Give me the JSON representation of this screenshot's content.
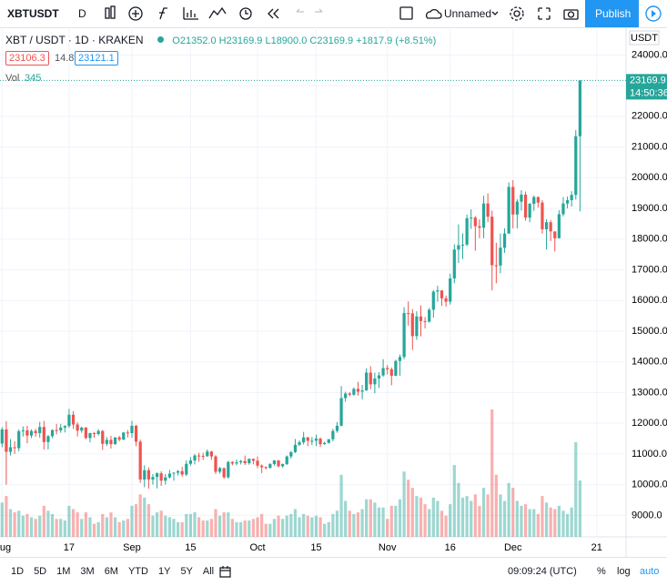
{
  "toolbar": {
    "symbol": "XBTUSDT",
    "interval": "D",
    "layout": "Unnamed",
    "publish": "Publish"
  },
  "legend": {
    "title": "XBT / USDT · 1D · KRAKEN",
    "open": "O21352.0",
    "high": "H23169.9",
    "low": "L18900.0",
    "close": "C23169.9",
    "change": "+1817.9 (+8.51%)",
    "bid": "23106.3",
    "spread": "14.8",
    "ask": "23121.1",
    "volume_label": "Vol",
    "volume": "345"
  },
  "chart_data": {
    "type": "candlestick",
    "up_color": "#26a69a",
    "down_color": "#ef5350",
    "currency": "USDT",
    "last_price_label": "23169.9",
    "countdown": "14:50:36",
    "ylim": [
      8300,
      24900
    ],
    "yticks": [
      {
        "value": 9000,
        "label": "9000.0"
      },
      {
        "value": 10000,
        "label": "10000.0"
      },
      {
        "value": 11000,
        "label": "11000.0"
      },
      {
        "value": 12000,
        "label": "12000.0"
      },
      {
        "value": 13000,
        "label": "13000.0"
      },
      {
        "value": 14000,
        "label": "14000.0"
      },
      {
        "value": 15000,
        "label": "15000.0"
      },
      {
        "value": 16000,
        "label": "16000.0"
      },
      {
        "value": 17000,
        "label": "17000.0"
      },
      {
        "value": 18000,
        "label": "18000.0"
      },
      {
        "value": 19000,
        "label": "19000.0"
      },
      {
        "value": 20000,
        "label": "20000.0"
      },
      {
        "value": 21000,
        "label": "21000.0"
      },
      {
        "value": 22000,
        "label": "22000.0"
      },
      {
        "value": 23000,
        "label": "23000.0"
      },
      {
        "value": 24000,
        "label": "24000.0"
      }
    ],
    "xlim": [
      -0.5,
      149
    ],
    "xticks": [
      {
        "value": 0,
        "label": "Aug"
      },
      {
        "value": 16,
        "label": "17"
      },
      {
        "value": 31,
        "label": "Sep"
      },
      {
        "value": 45,
        "label": "15"
      },
      {
        "value": 61,
        "label": "Oct"
      },
      {
        "value": 75,
        "label": "15"
      },
      {
        "value": 92,
        "label": "Nov"
      },
      {
        "value": 107,
        "label": "16"
      },
      {
        "value": 122,
        "label": "Dec"
      },
      {
        "value": 142,
        "label": "21"
      }
    ],
    "candles": [
      [
        11340,
        11870,
        11220,
        11800
      ],
      [
        11800,
        12070,
        10000,
        11070
      ],
      [
        11070,
        11480,
        10950,
        11220
      ],
      [
        11220,
        11420,
        11000,
        11190
      ],
      [
        11190,
        11800,
        11090,
        11740
      ],
      [
        11740,
        11900,
        11570,
        11770
      ],
      [
        11770,
        11920,
        11350,
        11600
      ],
      [
        11600,
        11800,
        11520,
        11750
      ],
      [
        11750,
        11820,
        11560,
        11680
      ],
      [
        11680,
        12050,
        11530,
        11880
      ],
      [
        11880,
        12080,
        11140,
        11390
      ],
      [
        11390,
        11620,
        11150,
        11580
      ],
      [
        11580,
        11800,
        11520,
        11780
      ],
      [
        11780,
        11980,
        11640,
        11770
      ],
      [
        11770,
        11980,
        11690,
        11860
      ],
      [
        11860,
        11940,
        11700,
        11910
      ],
      [
        11910,
        12470,
        11850,
        12280
      ],
      [
        12280,
        12400,
        11820,
        11960
      ],
      [
        11960,
        12030,
        11570,
        11760
      ],
      [
        11760,
        11890,
        11690,
        11860
      ],
      [
        11860,
        11880,
        11480,
        11520
      ],
      [
        11520,
        11690,
        11380,
        11680
      ],
      [
        11680,
        11720,
        11530,
        11650
      ],
      [
        11650,
        11810,
        11600,
        11750
      ],
      [
        11750,
        11780,
        11130,
        11330
      ],
      [
        11330,
        11550,
        11260,
        11460
      ],
      [
        11460,
        11590,
        11180,
        11320
      ],
      [
        11320,
        11550,
        11300,
        11540
      ],
      [
        11540,
        11590,
        11410,
        11470
      ],
      [
        11470,
        11720,
        11450,
        11700
      ],
      [
        11700,
        11780,
        11540,
        11680
      ],
      [
        11680,
        12080,
        11530,
        11920
      ],
      [
        11920,
        11950,
        11250,
        11400
      ],
      [
        11400,
        11470,
        10060,
        10170
      ],
      [
        10170,
        10630,
        9920,
        10470
      ],
      [
        10470,
        10560,
        9870,
        10170
      ],
      [
        10170,
        10350,
        10000,
        10250
      ],
      [
        10250,
        10400,
        9880,
        10370
      ],
      [
        10370,
        10440,
        9960,
        10130
      ],
      [
        10130,
        10350,
        10000,
        10240
      ],
      [
        10240,
        10480,
        10200,
        10360
      ],
      [
        10360,
        10400,
        10130,
        10390
      ],
      [
        10390,
        10480,
        10300,
        10440
      ],
      [
        10440,
        10580,
        10260,
        10330
      ],
      [
        10330,
        10790,
        10280,
        10680
      ],
      [
        10680,
        10900,
        10620,
        10790
      ],
      [
        10790,
        11000,
        10660,
        10950
      ],
      [
        10950,
        11040,
        10750,
        10940
      ],
      [
        10940,
        11040,
        10810,
        10930
      ],
      [
        10930,
        11150,
        10900,
        11080
      ],
      [
        11080,
        11100,
        10810,
        10920
      ],
      [
        10920,
        10960,
        10350,
        10420
      ],
      [
        10420,
        10580,
        10360,
        10540
      ],
      [
        10540,
        10560,
        10190,
        10240
      ],
      [
        10240,
        10780,
        10200,
        10740
      ],
      [
        10740,
        10760,
        10630,
        10690
      ],
      [
        10690,
        10820,
        10630,
        10730
      ],
      [
        10730,
        10810,
        10660,
        10770
      ],
      [
        10770,
        10950,
        10640,
        10700
      ],
      [
        10700,
        10860,
        10650,
        10840
      ],
      [
        10840,
        10850,
        10660,
        10780
      ],
      [
        10780,
        10920,
        10540,
        10620
      ],
      [
        10620,
        10660,
        10380,
        10570
      ],
      [
        10570,
        10600,
        10500,
        10550
      ],
      [
        10550,
        10700,
        10520,
        10670
      ],
      [
        10670,
        10800,
        10620,
        10790
      ],
      [
        10790,
        10800,
        10560,
        10600
      ],
      [
        10600,
        10690,
        10550,
        10670
      ],
      [
        10670,
        10950,
        10640,
        10920
      ],
      [
        10920,
        11100,
        10850,
        11060
      ],
      [
        11060,
        11490,
        11030,
        11300
      ],
      [
        11300,
        11440,
        11260,
        11380
      ],
      [
        11380,
        11720,
        11310,
        11540
      ],
      [
        11540,
        11560,
        11250,
        11430
      ],
      [
        11430,
        11550,
        11290,
        11430
      ],
      [
        11430,
        11630,
        11260,
        11500
      ],
      [
        11500,
        11540,
        11230,
        11320
      ],
      [
        11320,
        11400,
        11300,
        11360
      ],
      [
        11360,
        11490,
        11340,
        11480
      ],
      [
        11480,
        11820,
        11410,
        11750
      ],
      [
        11750,
        12040,
        11690,
        11920
      ],
      [
        11920,
        13210,
        11900,
        12820
      ],
      [
        12820,
        13030,
        12700,
        12970
      ],
      [
        12970,
        13020,
        12880,
        12930
      ],
      [
        12930,
        13170,
        12900,
        13120
      ],
      [
        13120,
        13350,
        12900,
        13030
      ],
      [
        13030,
        13250,
        12780,
        13070
      ],
      [
        13070,
        13790,
        13060,
        13650
      ],
      [
        13650,
        13860,
        13110,
        13270
      ],
      [
        13270,
        13650,
        12980,
        13460
      ],
      [
        13460,
        13670,
        13150,
        13560
      ],
      [
        13560,
        14090,
        13520,
        13800
      ],
      [
        13800,
        13900,
        13590,
        13760
      ],
      [
        13760,
        13820,
        13240,
        13550
      ],
      [
        13550,
        14070,
        13530,
        14030
      ],
      [
        14030,
        14240,
        13550,
        14160
      ],
      [
        14160,
        15780,
        14090,
        15590
      ],
      [
        15590,
        15970,
        15180,
        15580
      ],
      [
        15580,
        15720,
        14390,
        14840
      ],
      [
        14840,
        15650,
        14720,
        15480
      ],
      [
        15480,
        15840,
        14830,
        15330
      ],
      [
        15330,
        15460,
        15090,
        15310
      ],
      [
        15310,
        15760,
        15280,
        15700
      ],
      [
        15700,
        16340,
        15440,
        16290
      ],
      [
        16290,
        16480,
        15960,
        16330
      ],
      [
        16330,
        16330,
        15820,
        16070
      ],
      [
        16070,
        16160,
        15800,
        15960
      ],
      [
        15960,
        16870,
        15870,
        16720
      ],
      [
        16720,
        17830,
        16560,
        17660
      ],
      [
        17660,
        18480,
        17220,
        17800
      ],
      [
        17800,
        18190,
        17350,
        17820
      ],
      [
        17820,
        18800,
        17770,
        18680
      ],
      [
        18680,
        18970,
        18330,
        18700
      ],
      [
        18700,
        18750,
        17620,
        18420
      ],
      [
        18420,
        18640,
        18030,
        18370
      ],
      [
        18370,
        19410,
        18030,
        19160
      ],
      [
        19160,
        19490,
        18550,
        18730
      ],
      [
        18730,
        18930,
        16330,
        17150
      ],
      [
        17150,
        17880,
        16560,
        17140
      ],
      [
        17140,
        18180,
        16890,
        17720
      ],
      [
        17720,
        18350,
        17550,
        18180
      ],
      [
        18180,
        19850,
        18180,
        19700
      ],
      [
        19700,
        19920,
        18350,
        18800
      ],
      [
        18800,
        19300,
        18350,
        19220
      ],
      [
        19220,
        19590,
        18930,
        19450
      ],
      [
        19450,
        19550,
        18600,
        18700
      ],
      [
        18700,
        19180,
        18550,
        19150
      ],
      [
        19150,
        19420,
        18920,
        19370
      ],
      [
        19370,
        19390,
        19030,
        19190
      ],
      [
        19190,
        19270,
        18180,
        18320
      ],
      [
        18320,
        18650,
        17660,
        18550
      ],
      [
        18550,
        18620,
        17940,
        18250
      ],
      [
        18250,
        18250,
        17600,
        18030
      ],
      [
        18030,
        18940,
        18020,
        18810
      ],
      [
        18810,
        19370,
        18740,
        19160
      ],
      [
        19160,
        19390,
        19000,
        19270
      ],
      [
        19270,
        19560,
        19060,
        19440
      ],
      [
        19440,
        21550,
        19290,
        21352.0
      ],
      [
        21352.0,
        23169.9,
        18900,
        23169.9
      ]
    ],
    "volume": [
      210,
      250,
      170,
      150,
      160,
      130,
      140,
      120,
      110,
      130,
      190,
      160,
      140,
      110,
      110,
      100,
      190,
      170,
      150,
      110,
      150,
      120,
      80,
      90,
      140,
      120,
      150,
      120,
      90,
      100,
      110,
      190,
      200,
      260,
      240,
      200,
      130,
      150,
      160,
      130,
      120,
      110,
      90,
      90,
      140,
      140,
      150,
      120,
      100,
      100,
      110,
      170,
      130,
      150,
      150,
      110,
      90,
      90,
      100,
      100,
      110,
      120,
      140,
      80,
      80,
      110,
      130,
      110,
      130,
      140,
      170,
      120,
      140,
      130,
      120,
      130,
      120,
      80,
      90,
      140,
      160,
      380,
      220,
      160,
      140,
      150,
      170,
      230,
      230,
      210,
      180,
      180,
      110,
      190,
      190,
      230,
      400,
      350,
      300,
      250,
      240,
      200,
      170,
      240,
      220,
      160,
      130,
      200,
      440,
      330,
      240,
      250,
      220,
      260,
      190,
      300,
      260,
      780,
      380,
      260,
      220,
      330,
      300,
      220,
      190,
      200,
      170,
      170,
      140,
      250,
      210,
      180,
      170,
      190,
      160,
      140,
      180,
      580,
      345
    ]
  },
  "bottom": {
    "ranges": [
      "1D",
      "5D",
      "1M",
      "3M",
      "6M",
      "YTD",
      "1Y",
      "5Y",
      "All"
    ],
    "clock": "09:09:24 (UTC)",
    "percent": "%",
    "log": "log",
    "auto": "auto"
  }
}
